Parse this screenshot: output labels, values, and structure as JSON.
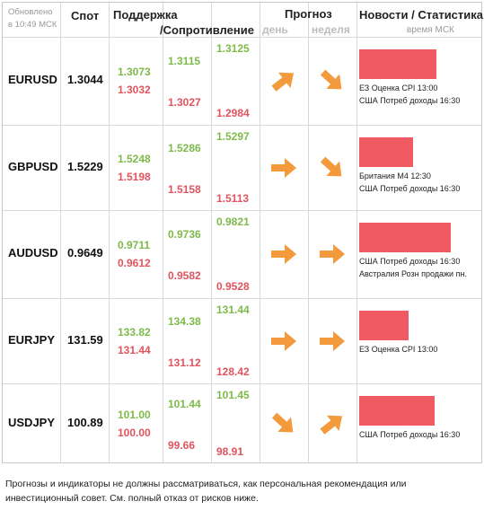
{
  "header": {
    "updated_line1": "Обновлено",
    "updated_line2": "в 10:49 МСК",
    "spot": "Спот",
    "support": "Поддержка",
    "resistance": "/Сопротивление",
    "forecast": "Прогноз",
    "day": "день",
    "week": "неделя",
    "news": "Новости / Статистика",
    "news_time": "время МСК"
  },
  "rows": [
    {
      "symbol": "EURUSD",
      "spot": "1.3044",
      "s_col1": {
        "top": "1.3073",
        "bottom": "1.3032"
      },
      "s_col2": {
        "top": "1.3115",
        "bottom": "1.3027"
      },
      "s_col3": {
        "top": "1.3125",
        "bottom": "1.2984"
      },
      "day_arrow": "arrow-up-right-icon",
      "week_arrow": "arrow-down-right-icon",
      "bar_fraction": 0.67,
      "news": [
        "ЕЗ Оценка CPI 13:00",
        "США Потреб доходы 16:30"
      ]
    },
    {
      "symbol": "GBPUSD",
      "spot": "1.5229",
      "s_col1": {
        "top": "1.5248",
        "bottom": "1.5198"
      },
      "s_col2": {
        "top": "1.5286",
        "bottom": "1.5158"
      },
      "s_col3": {
        "top": "1.5297",
        "bottom": "1.5113"
      },
      "day_arrow": "arrow-right-icon",
      "week_arrow": "arrow-down-right-icon",
      "bar_fraction": 0.47,
      "news": [
        "Британия М4 12:30",
        "США Потреб доходы 16:30"
      ]
    },
    {
      "symbol": "AUDUSD",
      "spot": "0.9649",
      "s_col1": {
        "top": "0.9711",
        "bottom": "0.9612"
      },
      "s_col2": {
        "top": "0.9736",
        "bottom": "0.9582"
      },
      "s_col3": {
        "top": "0.9821",
        "bottom": "0.9528"
      },
      "day_arrow": "arrow-right-icon",
      "week_arrow": "arrow-right-icon",
      "bar_fraction": 0.8,
      "news": [
        "США Потреб доходы 16:30",
        "Австралия Розн продажи пн."
      ]
    },
    {
      "symbol": "EURJPY",
      "spot": "131.59",
      "s_col1": {
        "top": "133.82",
        "bottom": "131.44"
      },
      "s_col2": {
        "top": "134.38",
        "bottom": "131.12"
      },
      "s_col3": {
        "top": "131.44",
        "bottom": "128.42"
      },
      "day_arrow": "arrow-right-icon",
      "week_arrow": "arrow-right-icon",
      "bar_fraction": 0.43,
      "news": [
        "ЕЗ Оценка CPI 13:00"
      ]
    },
    {
      "symbol": "USDJPY",
      "spot": "100.89",
      "s_col1": {
        "top": "101.00",
        "bottom": "100.00"
      },
      "s_col2": {
        "top": "101.44",
        "bottom": "99.66"
      },
      "s_col3": {
        "top": "101.45",
        "bottom": "98.91"
      },
      "day_arrow": "arrow-down-right-icon",
      "week_arrow": "arrow-up-right-icon",
      "bar_fraction": 0.66,
      "news": [
        "США Потреб доходы 16:30"
      ]
    }
  ],
  "colors": {
    "support": "#7dba4a",
    "resistance": "#e0545e",
    "arrow": "#f39a3c",
    "bar": "#ef5a63"
  },
  "disclaimer_line1": "Прогнозы и индикаторы не должны рассматриваться, как персональная рекомендация или",
  "disclaimer_line2": "инвестиционный совет. См. полный отказ от рисков ниже."
}
